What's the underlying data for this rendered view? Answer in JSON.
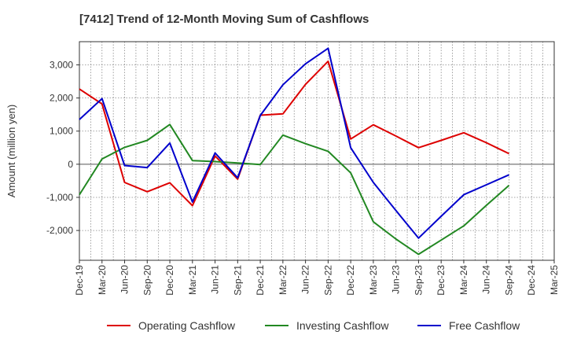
{
  "chart_data": {
    "type": "line",
    "title": "[7412]  Trend of 12-Month Moving Sum of Cashflows",
    "xlabel": "",
    "ylabel": "Amount (million yen)",
    "ylim": [
      -2900,
      3700
    ],
    "yticks": [
      3000,
      2000,
      1000,
      0,
      -1000,
      -2000
    ],
    "ytick_labels": [
      "3,000",
      "2,000",
      "1,000",
      "0",
      "-1,000",
      "-2,000"
    ],
    "categories": [
      "Dec-19",
      "Mar-20",
      "Jun-20",
      "Sep-20",
      "Dec-20",
      "Mar-21",
      "Jun-21",
      "Sep-21",
      "Dec-21",
      "Mar-22",
      "Jun-22",
      "Sep-22",
      "Dec-22",
      "Mar-23",
      "Jun-23",
      "Sep-23",
      "Dec-23",
      "Mar-24",
      "Jun-24",
      "Sep-24",
      "Dec-24",
      "Mar-25"
    ],
    "grid": true,
    "legend_position": "bottom",
    "series": [
      {
        "name": "Operating Cashflow",
        "color": "#dd0000",
        "values": [
          2270,
          1820,
          -550,
          -830,
          -560,
          -1250,
          250,
          -450,
          1480,
          1520,
          2410,
          3110,
          760,
          1190,
          850,
          500,
          720,
          950,
          650,
          320,
          null,
          null
        ]
      },
      {
        "name": "Investing Cashflow",
        "color": "#228822",
        "values": [
          -920,
          160,
          510,
          720,
          1200,
          110,
          80,
          40,
          -10,
          880,
          620,
          390,
          -260,
          -1740,
          -2260,
          -2720,
          -2290,
          -1860,
          -1240,
          -640,
          null,
          null
        ]
      },
      {
        "name": "Free Cashflow",
        "color": "#0000cc",
        "values": [
          1350,
          1980,
          -40,
          -100,
          640,
          -1140,
          340,
          -410,
          1470,
          2400,
          3030,
          3500,
          500,
          -550,
          -1400,
          -2230,
          -1570,
          -920,
          -620,
          -320,
          null,
          null
        ]
      }
    ]
  }
}
